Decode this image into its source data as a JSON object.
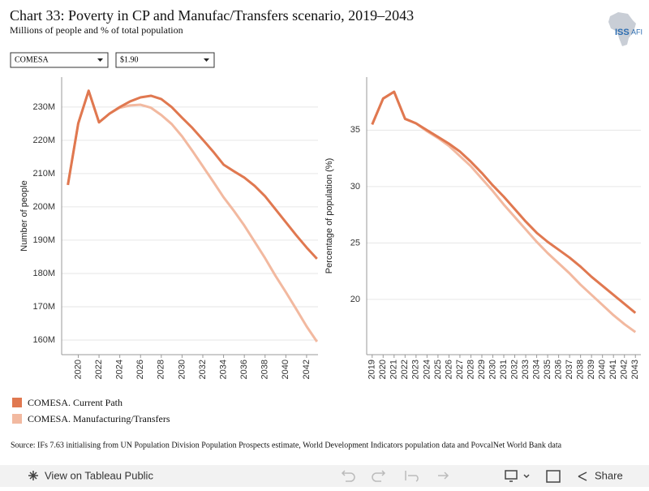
{
  "header": {
    "title": "Chart 33: Poverty in CP and Manufac/Transfers scenario, 2019–2043",
    "subtitle": "Millions of people and % of total population"
  },
  "logo": {
    "text": "ISS",
    "suffix": "AFI"
  },
  "filters": [
    "COMESA",
    "$1.90"
  ],
  "chart_data": [
    {
      "type": "line",
      "ylabel": "Number of people",
      "grid": true,
      "x": [
        2019,
        2020,
        2021,
        2022,
        2023,
        2024,
        2025,
        2026,
        2027,
        2028,
        2029,
        2030,
        2031,
        2032,
        2033,
        2034,
        2035,
        2036,
        2037,
        2038,
        2039,
        2040,
        2041,
        2042,
        2043
      ],
      "xlim": [
        2018.4,
        2043.1
      ],
      "xticks": [
        2020,
        2022,
        2024,
        2026,
        2028,
        2030,
        2032,
        2034,
        2036,
        2038,
        2040,
        2042
      ],
      "ylim": [
        155600000,
        239000000
      ],
      "yticks": [
        {
          "value": 160000000,
          "label": "160M"
        },
        {
          "value": 170000000,
          "label": "170M"
        },
        {
          "value": 180000000,
          "label": "180M"
        },
        {
          "value": 190000000,
          "label": "190M"
        },
        {
          "value": 200000000,
          "label": "200M"
        },
        {
          "value": 210000000,
          "label": "210M"
        },
        {
          "value": 220000000,
          "label": "220M"
        },
        {
          "value": 230000000,
          "label": "230M"
        }
      ],
      "series": [
        {
          "name": "COMESA. Current Path",
          "color": "#e07850",
          "values": [
            206600000,
            225100000,
            234900000,
            225400000,
            228000000,
            230000000,
            231700000,
            232900000,
            233400000,
            232400000,
            230000000,
            226800000,
            223700000,
            220200000,
            216600000,
            212700000,
            210700000,
            208800000,
            206300000,
            203200000,
            199300000,
            195400000,
            191500000,
            187800000,
            184400000
          ]
        },
        {
          "name": "COMESA. Manufacturing/Transfers",
          "color": "#f2b9a0",
          "values": [
            206600000,
            225100000,
            234900000,
            225400000,
            228000000,
            229800000,
            230500000,
            230700000,
            229800000,
            227600000,
            224900000,
            221200000,
            216800000,
            212200000,
            207600000,
            202900000,
            198800000,
            194400000,
            189500000,
            184600000,
            179300000,
            174400000,
            169300000,
            164100000,
            159500000
          ]
        }
      ]
    },
    {
      "type": "line",
      "ylabel": "Percentage of population (%)",
      "grid": true,
      "x": [
        2019,
        2020,
        2021,
        2022,
        2023,
        2024,
        2025,
        2026,
        2027,
        2028,
        2029,
        2030,
        2031,
        2032,
        2033,
        2034,
        2035,
        2036,
        2037,
        2038,
        2039,
        2040,
        2041,
        2042,
        2043
      ],
      "xlim": [
        2018.5,
        2043.5
      ],
      "xticks": [
        2019,
        2020,
        2021,
        2022,
        2023,
        2024,
        2025,
        2026,
        2027,
        2028,
        2029,
        2030,
        2031,
        2032,
        2033,
        2034,
        2035,
        2036,
        2037,
        2038,
        2039,
        2040,
        2041,
        2042,
        2043
      ],
      "ylim": [
        15.1,
        39.7
      ],
      "yticks": [
        20,
        25,
        30,
        35
      ],
      "series": [
        {
          "name": "COMESA. Current Path",
          "color": "#e07850",
          "values": [
            35.5,
            37.8,
            38.4,
            36.0,
            35.6,
            35.0,
            34.4,
            33.8,
            33.1,
            32.2,
            31.2,
            30.1,
            29.1,
            28.0,
            26.9,
            25.9,
            25.1,
            24.4,
            23.7,
            22.9,
            22.0,
            21.2,
            20.4,
            19.6,
            18.8
          ]
        },
        {
          "name": "COMESA. Manufacturing/Transfers",
          "color": "#f2b9a0",
          "values": [
            35.5,
            37.8,
            38.4,
            36.0,
            35.6,
            34.9,
            34.3,
            33.6,
            32.7,
            31.8,
            30.7,
            29.6,
            28.4,
            27.3,
            26.2,
            25.1,
            24.1,
            23.2,
            22.3,
            21.3,
            20.4,
            19.5,
            18.6,
            17.8,
            17.1
          ]
        }
      ]
    }
  ],
  "source": "Source: IFs 7.63 initialising from UN Population Division Population Prospects estimate, World Development Indicators population data and PovcalNet World Bank data",
  "toolbar": {
    "view": "View on Tableau Public",
    "share": "Share"
  }
}
